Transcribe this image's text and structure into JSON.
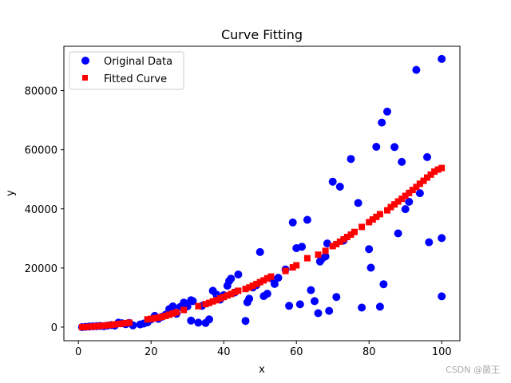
{
  "chart_data": {
    "type": "scatter",
    "title": "Curve Fitting",
    "xlabel": "x",
    "ylabel": "y",
    "xlim": [
      -4,
      105
    ],
    "ylim": [
      -4600,
      95000
    ],
    "xticks": [
      0,
      20,
      40,
      60,
      80,
      100
    ],
    "yticks": [
      0,
      20000,
      40000,
      60000,
      80000
    ],
    "grid": false,
    "legend_position": "upper-left",
    "series": [
      {
        "name": "Original Data",
        "marker": "circle",
        "color": "#0000ff",
        "points": [
          [
            1,
            0
          ],
          [
            2,
            100
          ],
          [
            3,
            200
          ],
          [
            4,
            250
          ],
          [
            5,
            300
          ],
          [
            6,
            400
          ],
          [
            7,
            350
          ],
          [
            8,
            500
          ],
          [
            9,
            700
          ],
          [
            10,
            500
          ],
          [
            11,
            1500
          ],
          [
            12,
            1300
          ],
          [
            13,
            1000
          ],
          [
            14,
            1400
          ],
          [
            15,
            600
          ],
          [
            17,
            900
          ],
          [
            18,
            1200
          ],
          [
            19,
            1600
          ],
          [
            20,
            2600
          ],
          [
            21,
            3800
          ],
          [
            22,
            2800
          ],
          [
            23,
            3500
          ],
          [
            24,
            4200
          ],
          [
            25,
            6100
          ],
          [
            26,
            7000
          ],
          [
            27,
            4500
          ],
          [
            28,
            6800
          ],
          [
            29,
            8300
          ],
          [
            30,
            7000
          ],
          [
            31,
            9100
          ],
          [
            31.5,
            8800
          ],
          [
            31,
            2200
          ],
          [
            33,
            1500
          ],
          [
            34,
            7200
          ],
          [
            35,
            1400
          ],
          [
            36,
            2600
          ],
          [
            37,
            12300
          ],
          [
            38,
            11000
          ],
          [
            39,
            9300
          ],
          [
            40,
            10800
          ],
          [
            41,
            14000
          ],
          [
            41.5,
            15600
          ],
          [
            42,
            16400
          ],
          [
            43,
            11700
          ],
          [
            44,
            17800
          ],
          [
            46,
            2100
          ],
          [
            46.5,
            8400
          ],
          [
            47,
            9600
          ],
          [
            48,
            13400
          ],
          [
            49,
            14200
          ],
          [
            50,
            25400
          ],
          [
            51,
            10500
          ],
          [
            52,
            11300
          ],
          [
            53,
            16500
          ],
          [
            54,
            14600
          ],
          [
            55,
            16700
          ],
          [
            57,
            19500
          ],
          [
            58,
            7200
          ],
          [
            59,
            35400
          ],
          [
            60,
            26700
          ],
          [
            61,
            7700
          ],
          [
            61.5,
            27200
          ],
          [
            63,
            36300
          ],
          [
            64,
            12500
          ],
          [
            65,
            8800
          ],
          [
            66,
            4700
          ],
          [
            66.5,
            22200
          ],
          [
            67,
            23100
          ],
          [
            68,
            23900
          ],
          [
            68.5,
            28300
          ],
          [
            69,
            5500
          ],
          [
            70,
            49200
          ],
          [
            71,
            10200
          ],
          [
            72,
            47500
          ],
          [
            73,
            29300
          ],
          [
            75,
            56900
          ],
          [
            77,
            42000
          ],
          [
            78,
            6600
          ],
          [
            80,
            26400
          ],
          [
            80.5,
            20100
          ],
          [
            82,
            61000
          ],
          [
            83,
            6900
          ],
          [
            83.5,
            69200
          ],
          [
            84,
            14500
          ],
          [
            85,
            72900
          ],
          [
            87,
            60900
          ],
          [
            88,
            31700
          ],
          [
            89,
            55900
          ],
          [
            90,
            39900
          ],
          [
            91,
            42400
          ],
          [
            93,
            87000
          ],
          [
            94,
            45300
          ],
          [
            96,
            57500
          ],
          [
            96.5,
            28700
          ],
          [
            100,
            90700
          ],
          [
            100,
            30100
          ],
          [
            100,
            10400
          ]
        ]
      },
      {
        "name": "Fitted Curve",
        "marker": "square",
        "color": "#ff0000",
        "points": [
          [
            1,
            0
          ],
          [
            2,
            50
          ],
          [
            3,
            120
          ],
          [
            4,
            200
          ],
          [
            5,
            300
          ],
          [
            6,
            400
          ],
          [
            7,
            500
          ],
          [
            8,
            600
          ],
          [
            9,
            750
          ],
          [
            10,
            900
          ],
          [
            11,
            1050
          ],
          [
            12,
            1200
          ],
          [
            13,
            1350
          ],
          [
            14,
            1500
          ],
          [
            19,
            2600
          ],
          [
            20,
            2800
          ],
          [
            21,
            3000
          ],
          [
            22,
            3200
          ],
          [
            23,
            3500
          ],
          [
            24,
            3800
          ],
          [
            25,
            4200
          ],
          [
            26,
            4600
          ],
          [
            27,
            5000
          ],
          [
            29,
            5800
          ],
          [
            33,
            7100
          ],
          [
            35,
            7800
          ],
          [
            36,
            8200
          ],
          [
            37,
            8700
          ],
          [
            38,
            9100
          ],
          [
            39,
            9700
          ],
          [
            40,
            10200
          ],
          [
            41,
            10700
          ],
          [
            42,
            11200
          ],
          [
            43,
            11800
          ],
          [
            44,
            12300
          ],
          [
            46,
            12900
          ],
          [
            47,
            13400
          ],
          [
            48,
            14000
          ],
          [
            49,
            14600
          ],
          [
            50,
            15200
          ],
          [
            51,
            15800
          ],
          [
            52,
            16500
          ],
          [
            53,
            17100
          ],
          [
            57,
            19000
          ],
          [
            59,
            20200
          ],
          [
            60,
            20900
          ],
          [
            63,
            23300
          ],
          [
            66,
            24500
          ],
          [
            68,
            25800
          ],
          [
            70,
            27400
          ],
          [
            71,
            28100
          ],
          [
            72,
            28900
          ],
          [
            73,
            29700
          ],
          [
            74,
            30500
          ],
          [
            75,
            31300
          ],
          [
            76,
            32200
          ],
          [
            78,
            33900
          ],
          [
            80,
            35500
          ],
          [
            81,
            36400
          ],
          [
            82,
            37300
          ],
          [
            83,
            38200
          ],
          [
            85,
            39500
          ],
          [
            86,
            40600
          ],
          [
            87,
            41500
          ],
          [
            88,
            42500
          ],
          [
            89,
            43400
          ],
          [
            90,
            44400
          ],
          [
            91,
            45400
          ],
          [
            92,
            46400
          ],
          [
            93,
            47400
          ],
          [
            94,
            48500
          ],
          [
            95,
            49500
          ],
          [
            96,
            50600
          ],
          [
            97,
            51600
          ],
          [
            98,
            52600
          ],
          [
            99,
            53300
          ],
          [
            100,
            53800
          ]
        ]
      }
    ]
  },
  "watermark": "CSDN @菌王"
}
